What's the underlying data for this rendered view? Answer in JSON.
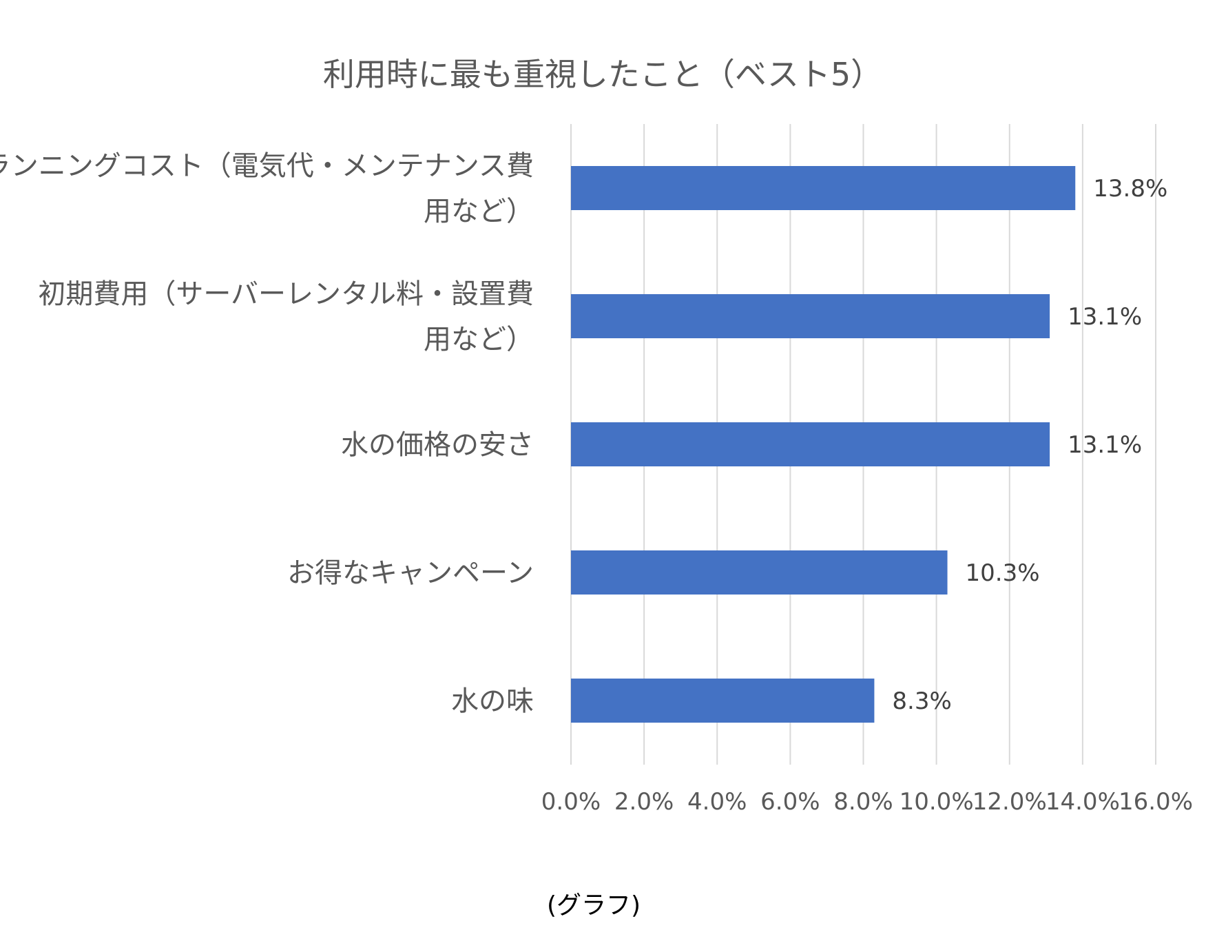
{
  "chart_data": {
    "type": "bar",
    "orientation": "horizontal",
    "title": "利用時に最も重視したこと（ベスト5）",
    "categories": [
      "ランニングコスト（電気代・メンテナンス費用など）",
      "初期費用（サーバーレンタル料・設置費用など）",
      "水の価格の安さ",
      "お得なキャンペーン",
      "水の味"
    ],
    "category_lines": [
      [
        "ランニングコスト（電気代・メンテナンス費",
        "用など）"
      ],
      [
        "初期費用（サーバーレンタル料・設置費",
        "用など）"
      ],
      [
        "水の価格の安さ"
      ],
      [
        "お得なキャンペーン"
      ],
      [
        "水の味"
      ]
    ],
    "values": [
      13.8,
      13.1,
      13.1,
      10.3,
      8.3
    ],
    "data_labels": [
      "13.8%",
      "13.1%",
      "13.1%",
      "10.3%",
      "8.3%"
    ],
    "xlim": [
      0,
      16
    ],
    "x_ticks": [
      "0.0%",
      "2.0%",
      "4.0%",
      "6.0%",
      "8.0%",
      "10.0%",
      "12.0%",
      "14.0%",
      "16.0%"
    ],
    "grid": true,
    "legend": "none",
    "bar_color": "#4472c4"
  },
  "caption": "(グラフ)"
}
